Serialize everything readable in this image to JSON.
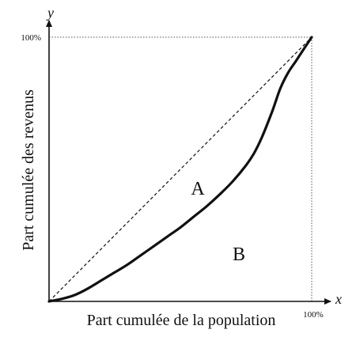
{
  "chart_data": {
    "type": "line",
    "xlabel": "Part cumulée de la population",
    "ylabel": "Part cumulée des revenus",
    "x_axis_var": "x",
    "y_axis_var": "y",
    "xlim": [
      0,
      100
    ],
    "ylim": [
      0,
      100
    ],
    "x_tick_label": "100%",
    "y_tick_label": "100%",
    "region_labels": [
      "A",
      "B"
    ],
    "series": [
      {
        "style": "dashed",
        "x": [
          0,
          100
        ],
        "y": [
          0,
          100
        ]
      },
      {
        "style": "solid",
        "x": [
          0,
          5,
          10,
          15,
          20,
          25,
          30,
          35,
          40,
          45,
          50,
          55,
          60,
          65,
          70,
          75,
          78,
          81,
          85,
          88,
          91,
          94,
          97,
          100
        ],
        "y": [
          0,
          1,
          2.5,
          5,
          8,
          11,
          14,
          17.5,
          21,
          24.5,
          28,
          32,
          36,
          40.5,
          45.5,
          51.5,
          56,
          62,
          72,
          80.5,
          86.5,
          91,
          95.5,
          100
        ]
      }
    ],
    "colors": {
      "line": "#111111",
      "axis": "#111111",
      "guide": "#555555"
    }
  }
}
